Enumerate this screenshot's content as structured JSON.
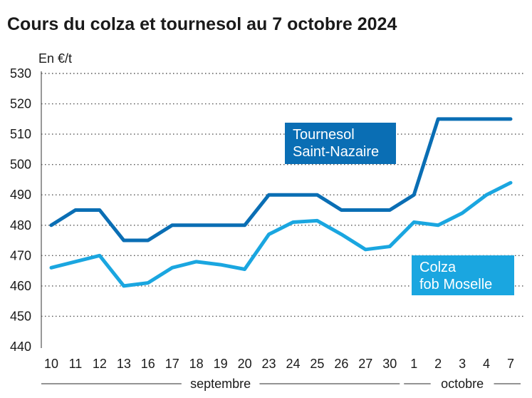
{
  "chart_data": {
    "type": "line",
    "title": "Cours du colza et tournesol au 7 octobre 2024",
    "ylabel": "En €/t",
    "ylim": [
      440,
      530
    ],
    "yticks": [
      440,
      450,
      460,
      470,
      480,
      490,
      500,
      510,
      520,
      530
    ],
    "categories": [
      "10",
      "11",
      "12",
      "13",
      "16",
      "17",
      "18",
      "19",
      "20",
      "23",
      "24",
      "25",
      "26",
      "27",
      "30",
      "1",
      "2",
      "3",
      "4",
      "7"
    ],
    "month_labels": [
      {
        "label": "septembre",
        "from": 0,
        "to": 14
      },
      {
        "label": "octobre",
        "from": 15,
        "to": 19
      }
    ],
    "series": [
      {
        "name": "Tournesol Saint-Nazaire",
        "legend_lines": [
          "Tournesol",
          "Saint-Nazaire"
        ],
        "color": "#0a6eb4",
        "values": [
          480,
          485,
          485,
          475,
          475,
          480,
          480,
          480,
          480,
          490,
          490,
          490,
          485,
          485,
          485,
          490,
          515,
          515,
          515,
          515
        ]
      },
      {
        "name": "Colza fob Moselle",
        "legend_lines": [
          "Colza",
          "fob Moselle"
        ],
        "color": "#1aa6e0",
        "values": [
          466,
          468,
          470,
          460,
          461,
          466,
          468,
          467,
          465.5,
          477,
          481,
          481.5,
          477,
          472,
          473,
          481,
          480,
          484,
          490,
          494
        ]
      }
    ]
  }
}
